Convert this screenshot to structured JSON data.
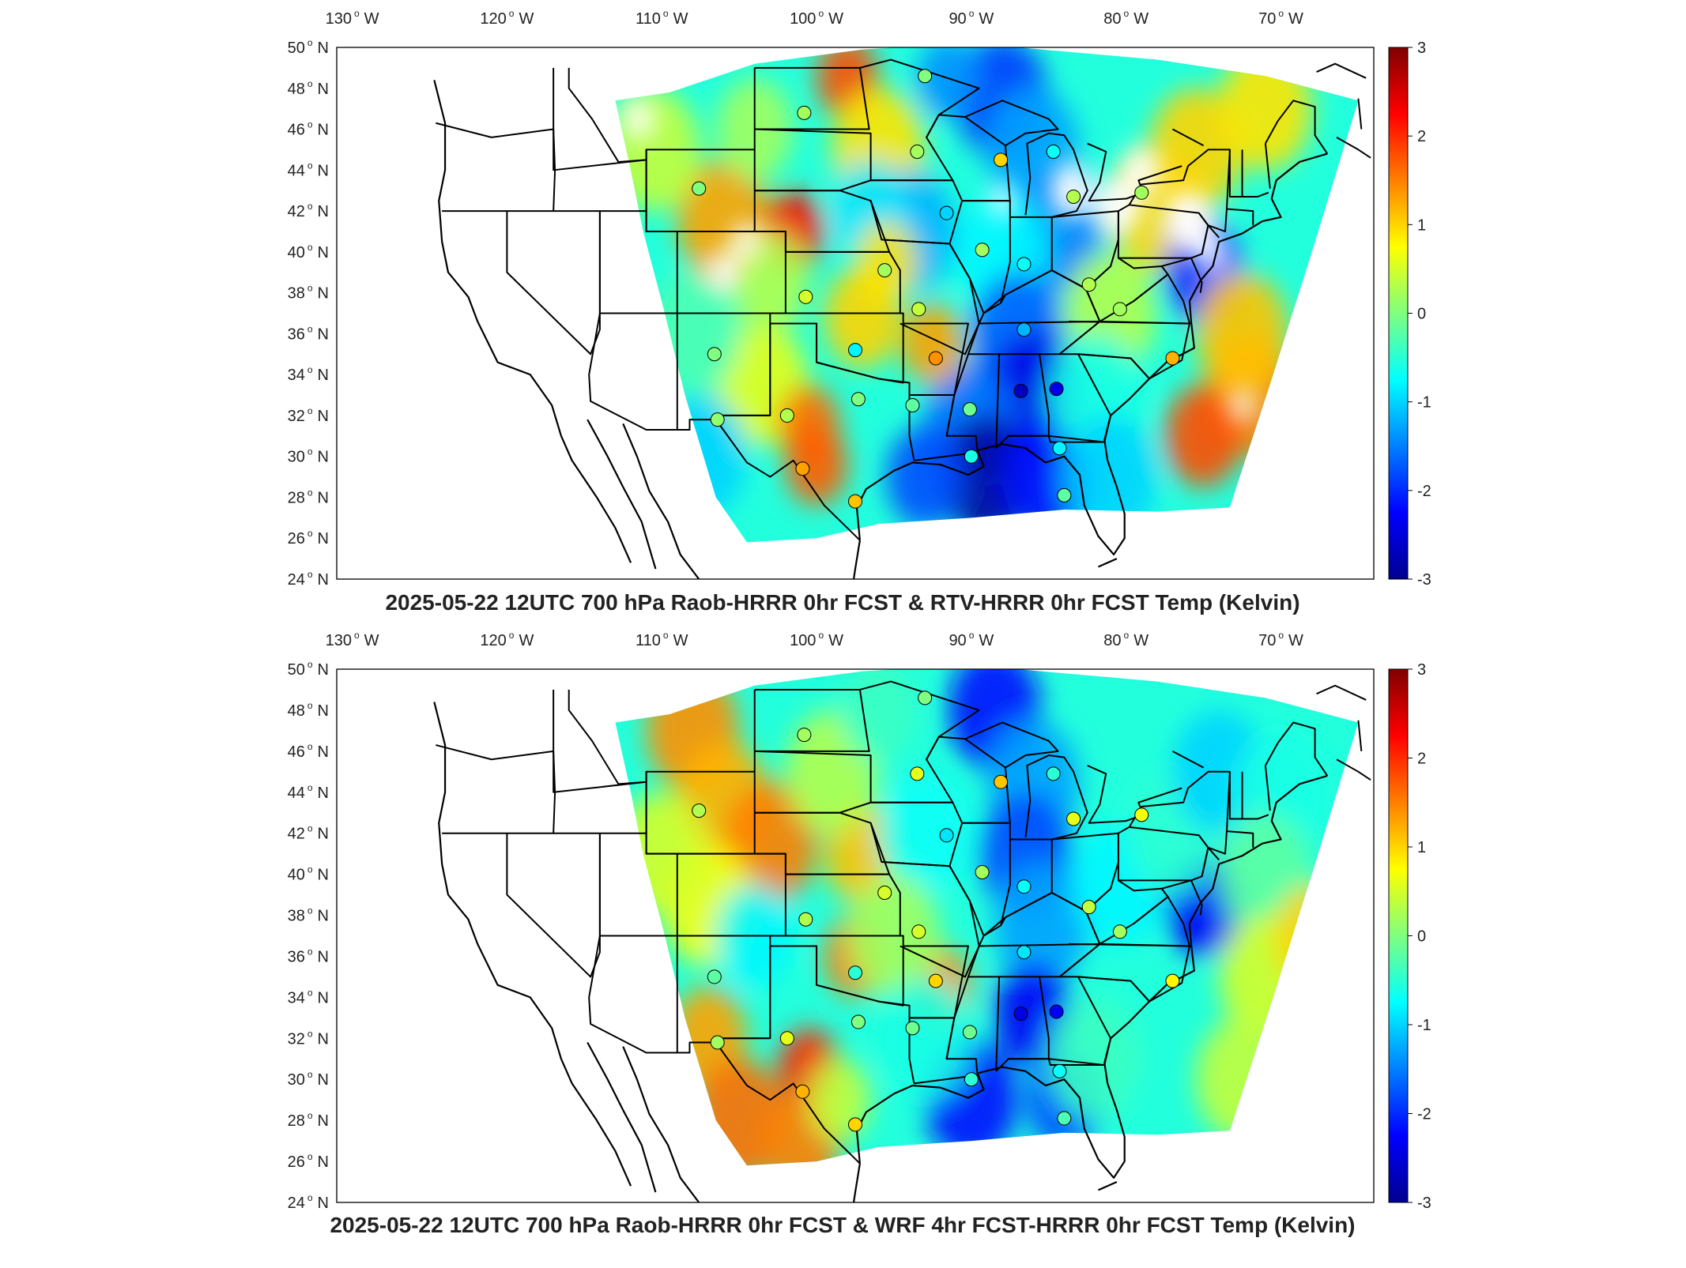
{
  "panels": [
    {
      "title": "2025-05-22 12UTC 700 hPa Raob-HRRR 0hr FCST & RTV-HRRR 0hr FCST Temp (Kelvin)",
      "variant": 0
    },
    {
      "title": "2025-05-22 12UTC 700 hPa Raob-HRRR 0hr FCST & WRF 4hr FCST-HRRR 0hr FCST Temp (Kelvin)",
      "variant": 1
    }
  ],
  "lon_ticks": [
    {
      "deg": "130",
      "hemi": "W",
      "value": -130
    },
    {
      "deg": "120",
      "hemi": "W",
      "value": -120
    },
    {
      "deg": "110",
      "hemi": "W",
      "value": -110
    },
    {
      "deg": "100",
      "hemi": "W",
      "value": -100
    },
    {
      "deg": "90",
      "hemi": "W",
      "value": -90
    },
    {
      "deg": "80",
      "hemi": "W",
      "value": -80
    },
    {
      "deg": "70",
      "hemi": "W",
      "value": -70
    }
  ],
  "lat_ticks": [
    {
      "deg": "50",
      "hemi": "N",
      "value": 50
    },
    {
      "deg": "48",
      "hemi": "N",
      "value": 48
    },
    {
      "deg": "46",
      "hemi": "N",
      "value": 46
    },
    {
      "deg": "44",
      "hemi": "N",
      "value": 44
    },
    {
      "deg": "42",
      "hemi": "N",
      "value": 42
    },
    {
      "deg": "40",
      "hemi": "N",
      "value": 40
    },
    {
      "deg": "38",
      "hemi": "N",
      "value": 38
    },
    {
      "deg": "36",
      "hemi": "N",
      "value": 36
    },
    {
      "deg": "34",
      "hemi": "N",
      "value": 34
    },
    {
      "deg": "32",
      "hemi": "N",
      "value": 32
    },
    {
      "deg": "30",
      "hemi": "N",
      "value": 30
    },
    {
      "deg": "28",
      "hemi": "N",
      "value": 28
    },
    {
      "deg": "26",
      "hemi": "N",
      "value": 26
    },
    {
      "deg": "24",
      "hemi": "N",
      "value": 24
    }
  ],
  "colorbar": {
    "ticks": [
      "3",
      "2",
      "1",
      "0",
      "-1",
      "-2",
      "-3"
    ],
    "min": -3,
    "max": 3,
    "colormap": "jet"
  },
  "map_extent": {
    "lon_min": -131,
    "lon_max": -64,
    "lat_min": 24,
    "lat_max": 50
  },
  "stations": [
    {
      "lon": -93.0,
      "lat": 48.6,
      "v": [
        0.0,
        0.0
      ]
    },
    {
      "lon": -100.8,
      "lat": 46.8,
      "v": [
        0.2,
        0.2
      ]
    },
    {
      "lon": -93.5,
      "lat": 44.9,
      "v": [
        0.2,
        0.6
      ]
    },
    {
      "lon": -88.1,
      "lat": 44.5,
      "v": [
        1.0,
        1.1
      ]
    },
    {
      "lon": -84.7,
      "lat": 44.9,
      "v": [
        -0.7,
        -0.5
      ]
    },
    {
      "lon": -107.6,
      "lat": 43.1,
      "v": [
        0.0,
        0.3
      ]
    },
    {
      "lon": -83.4,
      "lat": 42.7,
      "v": [
        0.3,
        0.6
      ]
    },
    {
      "lon": -79.0,
      "lat": 42.9,
      "v": [
        0.2,
        0.7
      ]
    },
    {
      "lon": -91.6,
      "lat": 41.9,
      "v": [
        -1.0,
        -0.9
      ]
    },
    {
      "lon": -89.3,
      "lat": 40.1,
      "v": [
        0.2,
        0.2
      ]
    },
    {
      "lon": -95.6,
      "lat": 39.1,
      "v": [
        0.2,
        0.5
      ]
    },
    {
      "lon": -100.7,
      "lat": 37.8,
      "v": [
        0.5,
        0.3
      ]
    },
    {
      "lon": -86.6,
      "lat": 39.4,
      "v": [
        -0.7,
        -0.7
      ]
    },
    {
      "lon": -82.4,
      "lat": 38.4,
      "v": [
        0.3,
        0.4
      ]
    },
    {
      "lon": -80.4,
      "lat": 37.2,
      "v": [
        0.2,
        0.2
      ]
    },
    {
      "lon": -93.4,
      "lat": 37.2,
      "v": [
        0.4,
        0.5
      ]
    },
    {
      "lon": -86.6,
      "lat": 36.2,
      "v": [
        -1.2,
        -0.9
      ]
    },
    {
      "lon": -106.6,
      "lat": 35.0,
      "v": [
        0.0,
        -0.2
      ]
    },
    {
      "lon": -97.5,
      "lat": 35.2,
      "v": [
        -0.8,
        -0.5
      ]
    },
    {
      "lon": -92.3,
      "lat": 34.8,
      "v": [
        1.4,
        1.0
      ]
    },
    {
      "lon": -77.0,
      "lat": 34.8,
      "v": [
        1.2,
        0.8
      ]
    },
    {
      "lon": -97.3,
      "lat": 32.8,
      "v": [
        0.0,
        0.0
      ]
    },
    {
      "lon": -101.9,
      "lat": 32.0,
      "v": [
        0.3,
        0.6
      ]
    },
    {
      "lon": -106.4,
      "lat": 31.8,
      "v": [
        0.1,
        0.2
      ]
    },
    {
      "lon": -93.8,
      "lat": 32.5,
      "v": [
        -0.2,
        -0.1
      ]
    },
    {
      "lon": -90.1,
      "lat": 32.3,
      "v": [
        -0.1,
        -0.1
      ]
    },
    {
      "lon": -86.8,
      "lat": 33.2,
      "v": [
        -2.6,
        -2.4
      ]
    },
    {
      "lon": -84.5,
      "lat": 33.3,
      "v": [
        -2.4,
        -2.3
      ]
    },
    {
      "lon": -100.9,
      "lat": 29.4,
      "v": [
        1.3,
        1.2
      ]
    },
    {
      "lon": -97.5,
      "lat": 27.8,
      "v": [
        1.1,
        1.0
      ]
    },
    {
      "lon": -90.0,
      "lat": 30.0,
      "v": [
        -0.6,
        -0.5
      ]
    },
    {
      "lon": -84.3,
      "lat": 30.4,
      "v": [
        -0.8,
        -0.7
      ]
    },
    {
      "lon": -84.0,
      "lat": 28.1,
      "v": [
        -0.2,
        -0.3
      ]
    }
  ]
}
